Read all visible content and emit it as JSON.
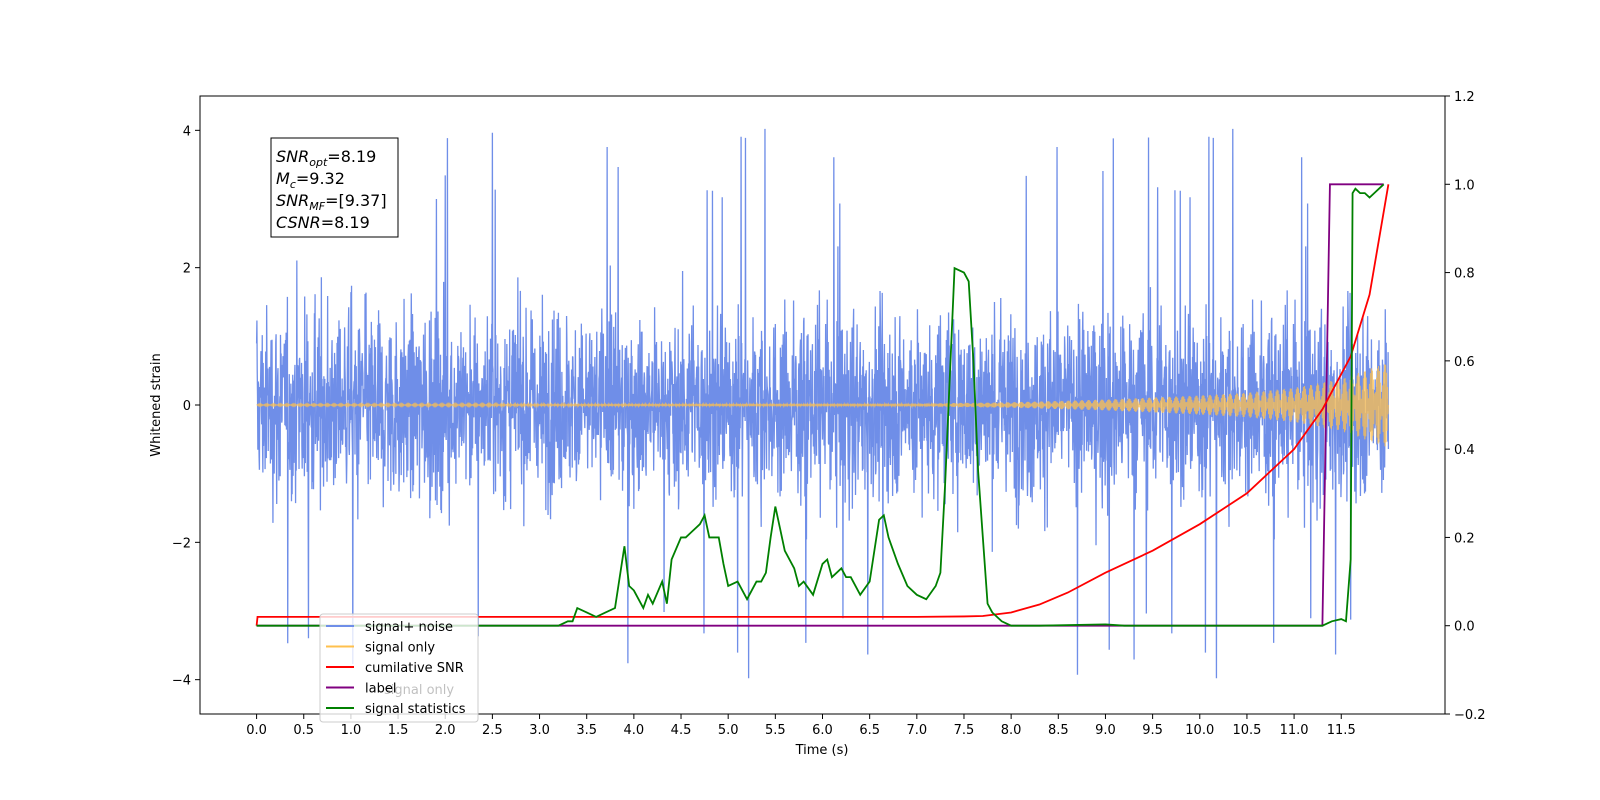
{
  "chart_data": {
    "type": "line",
    "xlabel": "Time (s)",
    "ylabel": "Whitened strain",
    "xlim": [
      -0.6,
      12.6
    ],
    "ylim": [
      -4.5,
      4.5
    ],
    "y2lim": [
      -0.2,
      1.2
    ],
    "x_ticks": [
      "0.0",
      "0.5",
      "1.0",
      "1.5",
      "2.0",
      "2.5",
      "3.0",
      "3.5",
      "4.0",
      "4.5",
      "5.0",
      "5.5",
      "6.0",
      "6.5",
      "7.0",
      "7.5",
      "8.0",
      "8.5",
      "9.0",
      "9.5",
      "10.0",
      "10.5",
      "11.0",
      "11.5"
    ],
    "y_ticks": [
      "4",
      "2",
      "0",
      "−2",
      "−4"
    ],
    "y2_ticks": [
      "1.2",
      "1.0",
      "0.8",
      "0.6",
      "0.4",
      "0.2",
      "0.0",
      "−0.2"
    ],
    "annotation": {
      "lines": [
        {
          "sym": "SNR",
          "sub": "opt",
          "value": "=8.19"
        },
        {
          "sym": "M",
          "sub": "c",
          "value": "=9.32"
        },
        {
          "sym": "SNR",
          "sub": "MF",
          "value": "=[9.37]"
        },
        {
          "sym": "CSNR",
          "sub": "",
          "value": "=8.19"
        }
      ]
    },
    "legend": {
      "position": "lower-left",
      "entries": [
        {
          "label": "signal+ noise",
          "color": "#6f8ee8"
        },
        {
          "label": "signal only",
          "color": "#ffc04d"
        },
        {
          "label": "cumilative SNR",
          "color": "#ff0000"
        },
        {
          "label": "label",
          "color": "#800080"
        },
        {
          "label": "signal statistics",
          "color": "#008000"
        }
      ],
      "faded_label": "signal only"
    },
    "series": [
      {
        "name": "signal+ noise",
        "axis": "left",
        "color": "#6f8ee8",
        "x_range": [
          0.0,
          12.0
        ],
        "envelope_upper_approx": 3.2,
        "envelope_lower_approx": -3.3,
        "peak_max": 4.1,
        "peak_min": -4.1
      },
      {
        "name": "signal only",
        "axis": "left",
        "color": "#ffc04d",
        "x_range": [
          0.0,
          12.0
        ],
        "amplitude_x": [
          0.0,
          7.0,
          8.0,
          9.0,
          10.0,
          10.5,
          11.0,
          11.5,
          12.0
        ],
        "amplitude_y": [
          0.01,
          0.02,
          0.04,
          0.08,
          0.14,
          0.18,
          0.25,
          0.38,
          0.62
        ]
      },
      {
        "name": "cumilative SNR",
        "axis": "right",
        "color": "#ff0000",
        "x": [
          0.0,
          0.01,
          2.0,
          4.0,
          6.0,
          7.0,
          7.5,
          7.7,
          8.0,
          8.3,
          8.6,
          9.0,
          9.5,
          10.0,
          10.5,
          11.0,
          11.3,
          11.6,
          11.8,
          12.0
        ],
        "y": [
          0.0,
          0.02,
          0.02,
          0.02,
          0.02,
          0.02,
          0.021,
          0.022,
          0.03,
          0.048,
          0.075,
          0.12,
          0.17,
          0.23,
          0.3,
          0.4,
          0.49,
          0.61,
          0.75,
          1.0
        ]
      },
      {
        "name": "label",
        "axis": "right",
        "color": "#800080",
        "x": [
          0.0,
          11.3,
          11.38,
          11.95
        ],
        "y": [
          0.0,
          0.0,
          1.0,
          1.0
        ]
      },
      {
        "name": "signal statistics",
        "axis": "right",
        "color": "#008000",
        "x": [
          0.0,
          3.0,
          3.2,
          3.3,
          3.35,
          3.4,
          3.5,
          3.6,
          3.7,
          3.8,
          3.9,
          3.95,
          4.0,
          4.1,
          4.15,
          4.2,
          4.3,
          4.35,
          4.4,
          4.5,
          4.55,
          4.6,
          4.7,
          4.75,
          4.8,
          4.9,
          4.95,
          5.0,
          5.1,
          5.2,
          5.3,
          5.35,
          5.4,
          5.45,
          5.5,
          5.55,
          5.6,
          5.7,
          5.75,
          5.8,
          5.9,
          6.0,
          6.05,
          6.1,
          6.2,
          6.25,
          6.3,
          6.4,
          6.5,
          6.6,
          6.65,
          6.7,
          6.8,
          6.9,
          7.0,
          7.1,
          7.2,
          7.25,
          7.3,
          7.4,
          7.5,
          7.55,
          7.6,
          7.65,
          7.7,
          7.75,
          7.8,
          7.9,
          8.0,
          8.3,
          9.0,
          9.2,
          11.3,
          11.4,
          11.5,
          11.55,
          11.6,
          11.62,
          11.65,
          11.7,
          11.75,
          11.8,
          11.85,
          11.9,
          11.95
        ],
        "y": [
          0.0,
          0.0,
          0.0,
          0.01,
          0.01,
          0.04,
          0.03,
          0.02,
          0.03,
          0.04,
          0.18,
          0.09,
          0.08,
          0.04,
          0.07,
          0.05,
          0.1,
          0.05,
          0.15,
          0.2,
          0.2,
          0.21,
          0.23,
          0.25,
          0.2,
          0.2,
          0.14,
          0.09,
          0.1,
          0.06,
          0.1,
          0.1,
          0.12,
          0.2,
          0.27,
          0.22,
          0.17,
          0.13,
          0.09,
          0.1,
          0.07,
          0.14,
          0.15,
          0.11,
          0.13,
          0.11,
          0.11,
          0.07,
          0.1,
          0.24,
          0.25,
          0.2,
          0.14,
          0.09,
          0.07,
          0.06,
          0.09,
          0.12,
          0.32,
          0.81,
          0.8,
          0.78,
          0.6,
          0.35,
          0.2,
          0.05,
          0.03,
          0.01,
          0.0,
          0.0,
          0.003,
          0.0,
          0.0,
          0.01,
          0.015,
          0.01,
          0.15,
          0.98,
          0.99,
          0.98,
          0.98,
          0.97,
          0.98,
          0.99,
          1.0
        ]
      }
    ]
  }
}
